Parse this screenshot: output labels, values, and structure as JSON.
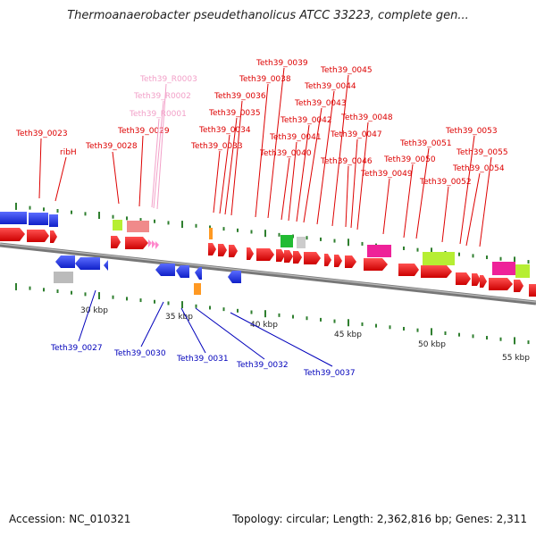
{
  "title": "Thermoanaerobacter pseudethanolicus ATCC 33223, complete gen...",
  "footer": {
    "accession": "Accession: NC_010321",
    "topology": "Topology: circular; Length: 2,362,816 bp; Genes: 2,311"
  },
  "colors": {
    "forward_label": "#dd0000",
    "reverse_label": "#0000bb",
    "rrna_label": "#f2a0c8",
    "backbone": "#777777",
    "tick": "#2f7f2f"
  },
  "kbp_labels": [
    "30 kbp",
    "35 kbp",
    "40 kbp",
    "45 kbp",
    "50 kbp",
    "55 kbp"
  ],
  "forward_gene_labels": [
    "Teth39_0023",
    "ribH",
    "Teth39_0028",
    "Teth39_0029",
    "Teth39_0033",
    "Teth39_0034",
    "Teth39_0035",
    "Teth39_0036",
    "Teth39_0038",
    "Teth39_0039",
    "Teth39_0040",
    "Teth39_0041",
    "Teth39_0042",
    "Teth39_0043",
    "Teth39_0044",
    "Teth39_0045",
    "Teth39_0046",
    "Teth39_0047",
    "Teth39_0048",
    "Teth39_0049",
    "Teth39_0050",
    "Teth39_0051",
    "Teth39_0052",
    "Teth39_0053",
    "Teth39_0054",
    "Teth39_0055"
  ],
  "rrna_labels": [
    "Teth39_R0003",
    "Teth39_R0002",
    "Teth39_R0001"
  ],
  "reverse_gene_labels": [
    "Teth39_0027",
    "Teth39_0030",
    "Teth39_0031",
    "Teth39_0032",
    "Teth39_0037"
  ]
}
